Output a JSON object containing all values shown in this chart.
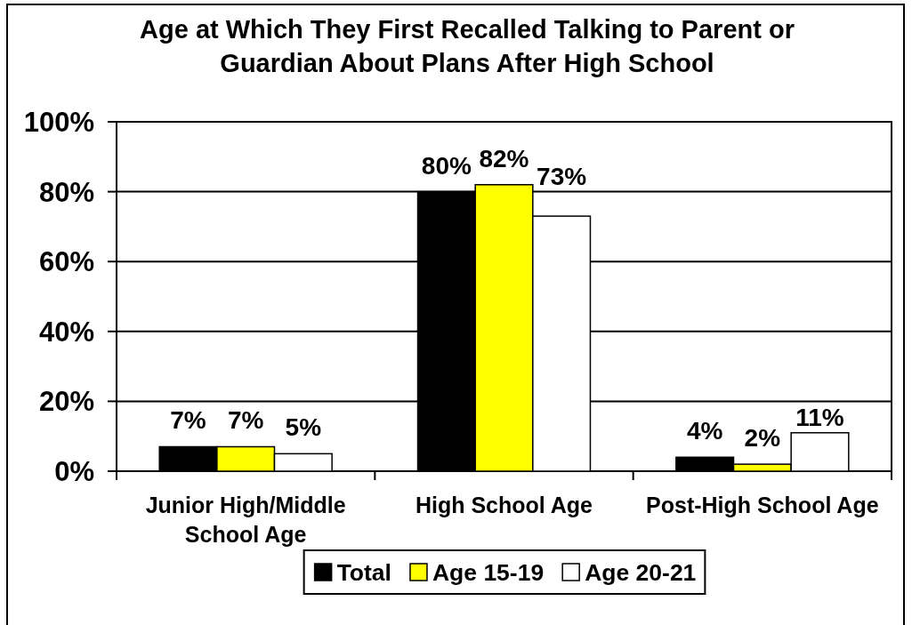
{
  "chart_data": {
    "type": "bar",
    "title": "Age at Which They First Recalled Talking to Parent or Guardian About Plans After High School",
    "categories": [
      "Junior High/Middle School Age",
      "High School Age",
      "Post-High School Age"
    ],
    "series": [
      {
        "name": "Total",
        "color": "#000000",
        "values": [
          7,
          80,
          4
        ],
        "value_labels": [
          "7%",
          "80%",
          "4%"
        ]
      },
      {
        "name": "Age 15-19",
        "color": "#ffff00",
        "values": [
          7,
          82,
          2
        ],
        "value_labels": [
          "7%",
          "82%",
          "2%"
        ]
      },
      {
        "name": "Age 20-21",
        "color": "#ffffff",
        "values": [
          5,
          73,
          11
        ],
        "value_labels": [
          "5%",
          "73%",
          "11%"
        ]
      }
    ],
    "ylim": [
      0,
      100
    ],
    "yticks": [
      {
        "value": 0,
        "label": "0%"
      },
      {
        "value": 20,
        "label": "20%"
      },
      {
        "value": 40,
        "label": "40%"
      },
      {
        "value": 60,
        "label": "60%"
      },
      {
        "value": 80,
        "label": "80%"
      },
      {
        "value": 100,
        "label": "100%"
      }
    ],
    "grid": "y",
    "legend": "bottom"
  }
}
